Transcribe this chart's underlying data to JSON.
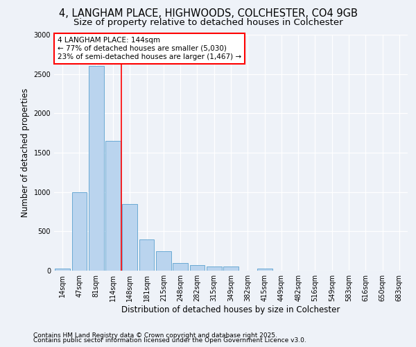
{
  "title1": "4, LANGHAM PLACE, HIGHWOODS, COLCHESTER, CO4 9GB",
  "title2": "Size of property relative to detached houses in Colchester",
  "xlabel": "Distribution of detached houses by size in Colchester",
  "ylabel": "Number of detached properties",
  "footnote1": "Contains HM Land Registry data © Crown copyright and database right 2025.",
  "footnote2": "Contains public sector information licensed under the Open Government Licence v3.0.",
  "categories": [
    "14sqm",
    "47sqm",
    "81sqm",
    "114sqm",
    "148sqm",
    "181sqm",
    "215sqm",
    "248sqm",
    "282sqm",
    "315sqm",
    "349sqm",
    "382sqm",
    "415sqm",
    "449sqm",
    "482sqm",
    "516sqm",
    "549sqm",
    "583sqm",
    "616sqm",
    "650sqm",
    "683sqm"
  ],
  "values": [
    30,
    1000,
    2600,
    1650,
    850,
    400,
    250,
    100,
    75,
    50,
    50,
    0,
    30,
    0,
    0,
    0,
    0,
    0,
    0,
    0,
    0
  ],
  "bar_color": "#bad4ee",
  "bar_edge_color": "#6aaad4",
  "vline_position": 3.5,
  "vline_color": "red",
  "annotation_text": "4 LANGHAM PLACE: 144sqm\n← 77% of detached houses are smaller (5,030)\n23% of semi-detached houses are larger (1,467) →",
  "annotation_box_color": "white",
  "annotation_box_edge_color": "red",
  "ylim": [
    0,
    3000
  ],
  "yticks": [
    0,
    500,
    1000,
    1500,
    2000,
    2500,
    3000
  ],
  "bg_color": "#eef2f8",
  "plot_bg_color": "#eef2f8",
  "grid_color": "white",
  "title_fontsize": 10.5,
  "subtitle_fontsize": 9.5,
  "axis_label_fontsize": 8.5,
  "tick_fontsize": 7,
  "annot_fontsize": 7.5,
  "footnote_fontsize": 6.5
}
